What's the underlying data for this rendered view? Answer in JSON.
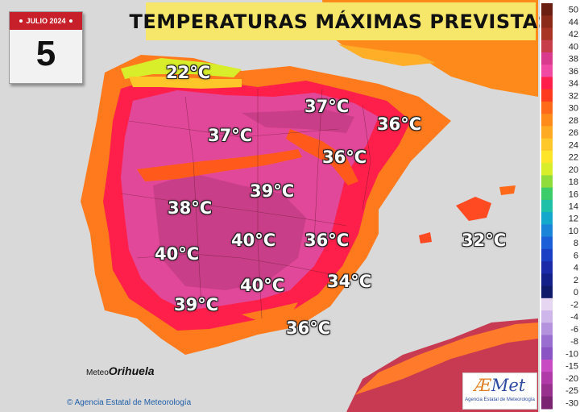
{
  "calendar": {
    "month_label": "JULIO 2024",
    "day": "5"
  },
  "title": "TEMPERATURAS MÁXIMAS PREVISTAS",
  "temperatures": [
    {
      "id": "cantabrico",
      "label": "22°C"
    },
    {
      "id": "rioja",
      "label": "37°C"
    },
    {
      "id": "aragon",
      "label": "36°C"
    },
    {
      "id": "valladolid",
      "label": "37°C"
    },
    {
      "id": "teruel",
      "label": "36°C"
    },
    {
      "id": "madrid",
      "label": "39°C"
    },
    {
      "id": "extremadura-norte",
      "label": "38°C"
    },
    {
      "id": "ciudad-real",
      "label": "40°C"
    },
    {
      "id": "albacete",
      "label": "36°C"
    },
    {
      "id": "baleares",
      "label": "32°C"
    },
    {
      "id": "badajoz",
      "label": "40°C"
    },
    {
      "id": "cordoba",
      "label": "40°C"
    },
    {
      "id": "murcia",
      "label": "34°C"
    },
    {
      "id": "sevilla",
      "label": "39°C"
    },
    {
      "id": "almeria",
      "label": "36°C"
    }
  ],
  "logos": {
    "meteo_prefix": "Meteo",
    "meteo_name": "Orihuela",
    "aemet_prefix": "Æ",
    "aemet_name": "Met",
    "aemet_subtitle": "Agencia Estatal de Meteorología",
    "copyright": "Agencia Estatal de Meteorología"
  },
  "legend": {
    "unit": "°C",
    "steps": [
      {
        "label": "50",
        "color": "#6b1e12"
      },
      {
        "label": "44",
        "color": "#8c2a1a"
      },
      {
        "label": "42",
        "color": "#a83424"
      },
      {
        "label": "40",
        "color": "#c73d4a"
      },
      {
        "label": "38",
        "color": "#d93a8e"
      },
      {
        "label": "36",
        "color": "#f04aa5"
      },
      {
        "label": "34",
        "color": "#ff1f4a"
      },
      {
        "label": "32",
        "color": "#ff3b1f"
      },
      {
        "label": "30",
        "color": "#ff6a1a"
      },
      {
        "label": "28",
        "color": "#ff8c1a"
      },
      {
        "label": "26",
        "color": "#ffaa22"
      },
      {
        "label": "24",
        "color": "#ffc82a"
      },
      {
        "label": "22",
        "color": "#ffe52a"
      },
      {
        "label": "20",
        "color": "#d9ee2a"
      },
      {
        "label": "18",
        "color": "#8fdc3a"
      },
      {
        "label": "16",
        "color": "#3ccc6a"
      },
      {
        "label": "14",
        "color": "#1fc0a8"
      },
      {
        "label": "12",
        "color": "#14a8cc"
      },
      {
        "label": "10",
        "color": "#1a84d8"
      },
      {
        "label": "8",
        "color": "#1a5fd8"
      },
      {
        "label": "6",
        "color": "#1a3fc4"
      },
      {
        "label": "4",
        "color": "#1a2aa8"
      },
      {
        "label": "2",
        "color": "#14208a"
      },
      {
        "label": "0",
        "color": "#101a6a"
      },
      {
        "label": "-2",
        "color": "#e6d6f2"
      },
      {
        "label": "-4",
        "color": "#cfb6ea"
      },
      {
        "label": "-6",
        "color": "#b592de"
      },
      {
        "label": "-8",
        "color": "#9a6ed0"
      },
      {
        "label": "-10",
        "color": "#8a54c4"
      },
      {
        "label": "-15",
        "color": "#c84bc4"
      },
      {
        "label": "-20",
        "color": "#b03aa8"
      },
      {
        "label": "-25",
        "color": "#98308e"
      },
      {
        "label": "-30",
        "color": "#7a2472"
      }
    ]
  }
}
